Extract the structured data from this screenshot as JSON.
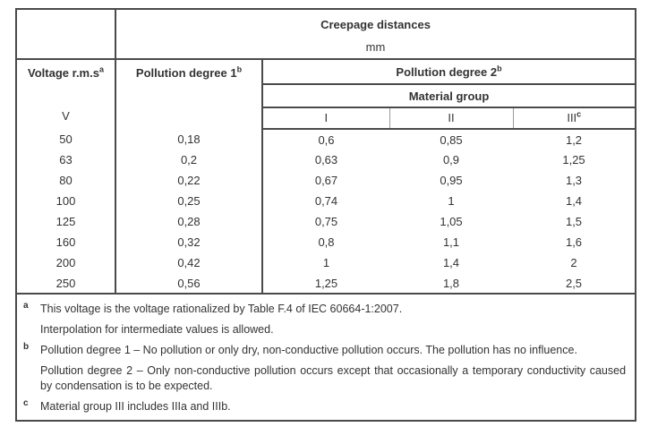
{
  "table": {
    "title_group": {
      "title": "Creepage distances",
      "unit": "mm"
    },
    "columns": {
      "voltage_label": "Voltage r.m.s",
      "voltage_marker": "a",
      "voltage_unit": "V",
      "pd1_label": "Pollution degree 1",
      "pd1_marker": "b",
      "pd2_label": "Pollution degree 2",
      "pd2_marker": "b",
      "material_group_label": "Material group",
      "groups": [
        "I",
        "II",
        "III"
      ],
      "group3_marker": "c"
    },
    "rows": [
      {
        "voltage": "50",
        "pd1": "0,18",
        "g1": "0,6",
        "g2": "0,85",
        "g3": "1,2"
      },
      {
        "voltage": "63",
        "pd1": "0,2",
        "g1": "0,63",
        "g2": "0,9",
        "g3": "1,25"
      },
      {
        "voltage": "80",
        "pd1": "0,22",
        "g1": "0,67",
        "g2": "0,95",
        "g3": "1,3"
      },
      {
        "voltage": "100",
        "pd1": "0,25",
        "g1": "0,74",
        "g2": "1",
        "g3": "1,4"
      },
      {
        "voltage": "125",
        "pd1": "0,28",
        "g1": "0,75",
        "g2": "1,05",
        "g3": "1,5"
      },
      {
        "voltage": "160",
        "pd1": "0,32",
        "g1": "0,8",
        "g2": "1,1",
        "g3": "1,6"
      },
      {
        "voltage": "200",
        "pd1": "0,42",
        "g1": "1",
        "g2": "1,4",
        "g3": "2"
      },
      {
        "voltage": "250",
        "pd1": "0,56",
        "g1": "1,25",
        "g2": "1,8",
        "g3": "2,5"
      }
    ],
    "footnotes": [
      {
        "marker": "a",
        "text": "This voltage is the voltage rationalized by Table F.4 of IEC 60664-1:2007."
      },
      {
        "marker": "",
        "text": "Interpolation for intermediate values is allowed."
      },
      {
        "marker": "b",
        "text": "Pollution degree 1 – No pollution or only dry, non-conductive pollution occurs. The pollution has no influence."
      },
      {
        "marker": "",
        "text": "Pollution degree 2 – Only non-conductive pollution occurs except that occasionally a temporary conductivity caused by condensation is to be expected."
      },
      {
        "marker": "c",
        "text": "Material group III includes IIIa and IIIb."
      }
    ],
    "colors": {
      "border": "#4a4a4a",
      "light_divider": "#9a9a9a",
      "text": "#333333",
      "background": "#ffffff"
    }
  }
}
